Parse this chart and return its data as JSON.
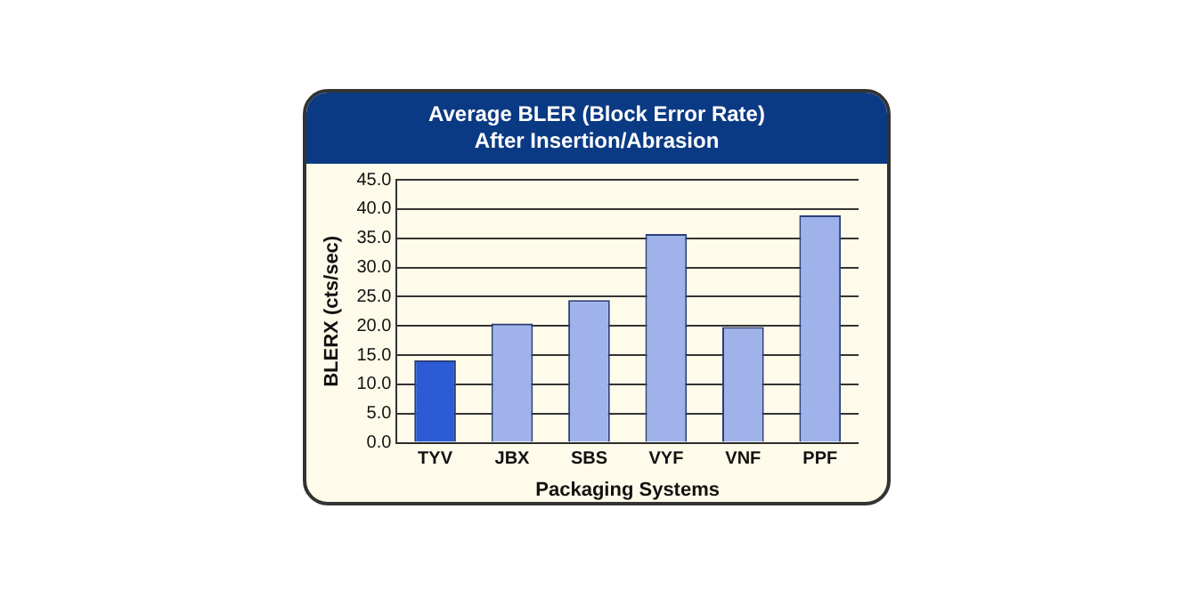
{
  "chart_data": {
    "type": "bar",
    "title": "Average BLER (Block Error Rate)\nAfter Insertion/Abrasion",
    "xlabel": "Packaging Systems",
    "ylabel": "BLERX (cts/sec)",
    "categories": [
      "TYV",
      "JBX",
      "SBS",
      "VYF",
      "VNF",
      "PPF"
    ],
    "values": [
      14.1,
      20.4,
      24.4,
      35.7,
      19.8,
      38.9
    ],
    "colors": [
      "#2d5bd6",
      "#9fb3ea",
      "#9fb3ea",
      "#9fb3ea",
      "#9fb3ea",
      "#9fb3ea"
    ],
    "ylim": [
      0,
      45
    ],
    "yticks": [
      {
        "value": 0,
        "label": "0.0"
      },
      {
        "value": 5,
        "label": "5.0"
      },
      {
        "value": 10,
        "label": "10.0"
      },
      {
        "value": 15,
        "label": "15.0"
      },
      {
        "value": 20,
        "label": "20.0"
      },
      {
        "value": 25,
        "label": "25.0"
      },
      {
        "value": 30,
        "label": "30.0"
      },
      {
        "value": 35,
        "label": "35.0"
      },
      {
        "value": 40,
        "label": "40.0"
      },
      {
        "value": 45,
        "label": "45.0"
      }
    ],
    "grid": "y",
    "legend": false
  }
}
